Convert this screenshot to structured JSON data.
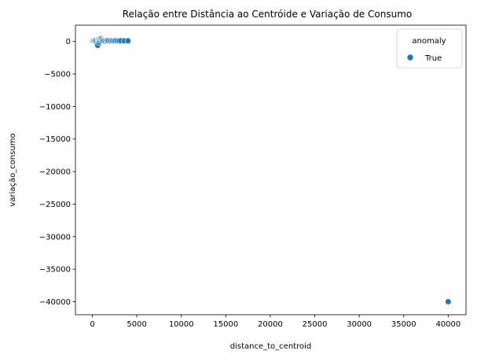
{
  "chart_data": {
    "type": "scatter",
    "title": "Relação entre Distância ao Centróide e Variação de Consumo",
    "xlabel": "distance_to_centroid",
    "ylabel": "variação_consumo",
    "xlim": [
      -1900,
      42000
    ],
    "ylim": [
      -42000,
      2500
    ],
    "xticks": [
      0,
      5000,
      10000,
      15000,
      20000,
      25000,
      30000,
      35000,
      40000
    ],
    "yticks": [
      0,
      -5000,
      -10000,
      -15000,
      -20000,
      -25000,
      -30000,
      -35000,
      -40000
    ],
    "grid": false,
    "legend": {
      "title": "anomaly",
      "position": "top-right",
      "entries": [
        "True"
      ]
    },
    "series": [
      {
        "name": "True",
        "color": "#1f77b4",
        "x": [
          20,
          90,
          160,
          250,
          340,
          420,
          500,
          560,
          600,
          640,
          680,
          720,
          760,
          820,
          880,
          950,
          1000,
          1100,
          1150,
          1300,
          1450,
          1600,
          1700,
          1800,
          2000,
          2150,
          2300,
          2450,
          2600,
          2800,
          3000,
          3200,
          3600,
          4000,
          40000
        ],
        "y": [
          80,
          100,
          120,
          90,
          150,
          60,
          -200,
          -500,
          -600,
          300,
          200,
          100,
          -150,
          250,
          150,
          450,
          350,
          200,
          100,
          120,
          80,
          150,
          100,
          130,
          90,
          110,
          100,
          80,
          120,
          100,
          90,
          110,
          100,
          90,
          -40000
        ]
      }
    ]
  }
}
